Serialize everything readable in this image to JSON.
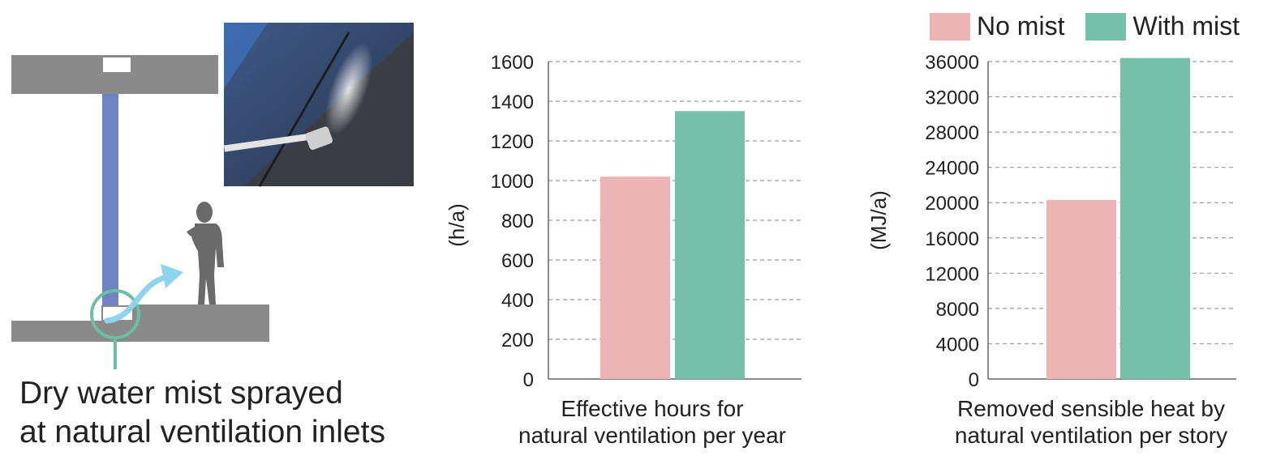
{
  "illustration": {
    "caption_line1": "Dry water mist sprayed",
    "caption_line2": "at natural ventilation inlets"
  },
  "legend": {
    "items": [
      {
        "label": "No mist",
        "color": "#ecb4b4"
      },
      {
        "label": "With mist",
        "color": "#76bfa8"
      }
    ]
  },
  "chart_data": [
    {
      "type": "bar",
      "categories": [
        "No mist",
        "With mist"
      ],
      "values": [
        1020,
        1350
      ],
      "title": "",
      "xlabel_line1": "Effective hours for",
      "xlabel_line2": "natural ventilation per year",
      "ylabel": "(h/a)",
      "ylim": [
        0,
        1600
      ],
      "yticks": [
        0,
        200,
        400,
        600,
        800,
        1000,
        1200,
        1400,
        1600
      ],
      "grid": true
    },
    {
      "type": "bar",
      "categories": [
        "No mist",
        "With mist"
      ],
      "values": [
        20300,
        36400
      ],
      "title": "",
      "xlabel_line1": "Removed sensible heat by",
      "xlabel_line2": "natural ventilation per story",
      "ylabel": "(MJ/a)",
      "ylim": [
        0,
        36000
      ],
      "yticks": [
        0,
        4000,
        8000,
        12000,
        16000,
        20000,
        24000,
        28000,
        32000,
        36000
      ],
      "grid": true
    }
  ]
}
